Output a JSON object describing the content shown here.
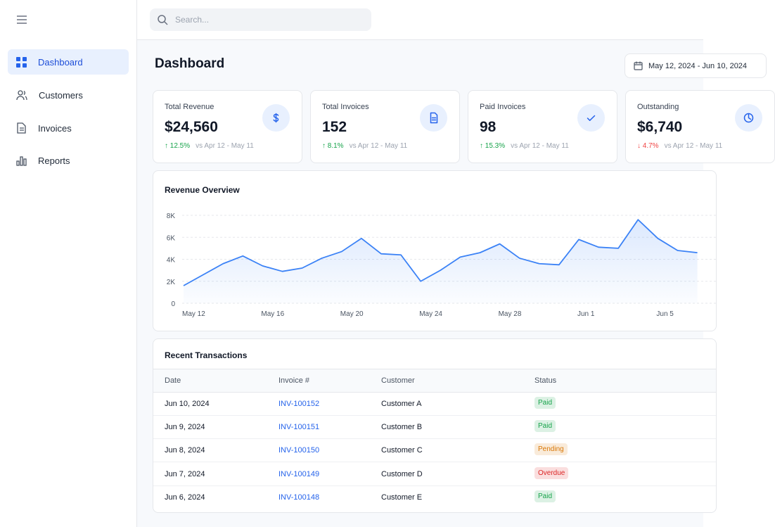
{
  "sidebar": {
    "nav": [
      "Dashboard",
      "Customers",
      "Invoices",
      "Reports"
    ]
  },
  "search": {
    "placeholder": "Search..."
  },
  "header": {
    "title": "Dashboard",
    "date_range": "May 12, 2024 - Jun 10, 2024"
  },
  "cards": [
    {
      "label": "Total Revenue",
      "value": "$24,560",
      "change": "↑ 12.5%",
      "change_color": "#16a34a",
      "compare": "vs Apr 12 - May 11"
    },
    {
      "label": "Total Invoices",
      "value": "152",
      "change": "↑ 8.1%",
      "change_color": "#16a34a",
      "compare": "vs Apr 12 - May 11"
    },
    {
      "label": "Paid Invoices",
      "value": "98",
      "change": "↑ 15.3%",
      "change_color": "#16a34a",
      "compare": "vs Apr 12 - May 11"
    },
    {
      "label": "Outstanding",
      "value": "$6,740",
      "change": "↓ 4.7%",
      "change_color": "#ef4444",
      "compare": "vs Apr 12 - May 11"
    }
  ],
  "chart_data": {
    "type": "line",
    "title": "Revenue Overview",
    "categories": [
      "May 12",
      null,
      null,
      null,
      "May 16",
      null,
      null,
      null,
      "May 20",
      null,
      null,
      null,
      "May 24",
      null,
      null,
      null,
      "May 28",
      null,
      null,
      null,
      "Jun 1",
      null,
      null,
      null,
      "Jun 5",
      null,
      null
    ],
    "values": [
      1600,
      2600,
      3600,
      4300,
      3400,
      2900,
      3200,
      4100,
      4700,
      5900,
      4500,
      4400,
      2000,
      3000,
      4200,
      4600,
      5400,
      4100,
      3600,
      3500,
      5800,
      5100,
      5000,
      7600,
      5900,
      4800,
      4600
    ],
    "color": "#3b82f6",
    "ylim": [
      0,
      8000
    ],
    "yticks": [
      0,
      {
        "value": 2000,
        "label": "2K"
      },
      {
        "value": 4000,
        "label": "4K"
      },
      {
        "value": 6000,
        "label": "6K"
      },
      {
        "value": 8000,
        "label": "8K"
      }
    ],
    "grid": true
  },
  "transactions": {
    "title": "Recent Transactions",
    "columns": [
      "Date",
      "Invoice #",
      "Customer",
      "Status"
    ],
    "rows": [
      {
        "date": "Jun 10, 2024",
        "invoice": "INV-100152",
        "customer": "Customer A",
        "status": "Paid",
        "status_color": "#16a34a"
      },
      {
        "date": "Jun 9, 2024",
        "invoice": "INV-100151",
        "customer": "Customer B",
        "status": "Paid",
        "status_color": "#16a34a"
      },
      {
        "date": "Jun 8, 2024",
        "invoice": "INV-100150",
        "customer": "Customer C",
        "status": "Pending",
        "status_color": "#d97706"
      },
      {
        "date": "Jun 7, 2024",
        "invoice": "INV-100149",
        "customer": "Customer D",
        "status": "Overdue",
        "status_color": "#dc2626"
      },
      {
        "date": "Jun 6, 2024",
        "invoice": "INV-100148",
        "customer": "Customer E",
        "status": "Paid",
        "status_color": "#16a34a"
      }
    ]
  }
}
